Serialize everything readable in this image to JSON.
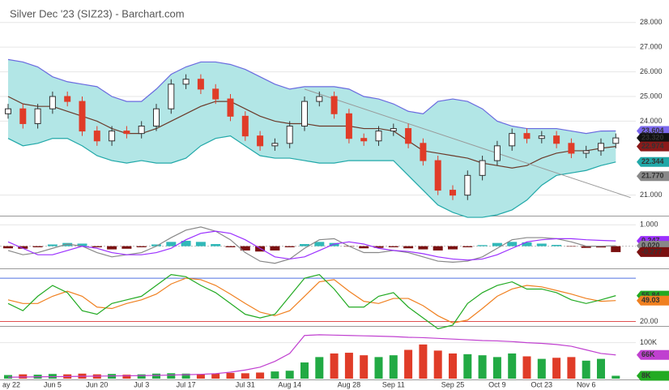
{
  "chart_data": {
    "type": "candlestick",
    "title": "Silver Dec '23 (SIZ23) - Barchart.com",
    "x_labels": [
      "ay 22",
      "Jun 5",
      "Jun 20",
      "Jul 3",
      "Jul 17",
      "Jul 31",
      "Aug 14",
      "Aug 28",
      "Sep 11",
      "Sep 25",
      "Oct 9",
      "Oct 23",
      "Nov 6"
    ],
    "x_label_index": [
      0,
      3,
      6,
      9,
      12,
      16,
      19,
      23,
      26,
      30,
      33,
      36,
      39
    ],
    "price": {
      "ylim": [
        20.2,
        28.65
      ],
      "yticks": [
        {
          "value": 28,
          "label": "28.000"
        },
        {
          "value": 27,
          "label": "27.000"
        },
        {
          "value": 26,
          "label": "26.000"
        },
        {
          "value": 25,
          "label": "25.000"
        },
        {
          "value": 24,
          "label": "24.000"
        },
        {
          "value": 21,
          "label": "21.000"
        }
      ],
      "open": [
        24.3,
        24.5,
        23.9,
        24.5,
        25.0,
        24.8,
        23.6,
        23.2,
        23.6,
        23.5,
        23.8,
        24.5,
        25.5,
        25.7,
        25.3,
        24.9,
        24.2,
        23.4,
        23.0,
        23.1,
        23.8,
        24.8,
        25.0,
        24.3,
        23.3,
        23.2,
        23.6,
        23.7,
        23.1,
        22.4,
        21.2,
        21.0,
        21.8,
        22.4,
        23.0,
        23.5,
        23.3,
        23.4,
        23.1,
        22.7,
        22.8,
        23.1
      ],
      "high": [
        24.7,
        24.7,
        24.7,
        25.2,
        25.2,
        25.0,
        23.8,
        23.8,
        23.8,
        24.0,
        24.7,
        25.7,
        25.9,
        25.9,
        25.5,
        25.1,
        24.4,
        23.6,
        23.3,
        24.0,
        25.0,
        25.2,
        25.2,
        24.5,
        23.5,
        23.8,
        23.9,
        23.9,
        23.3,
        22.6,
        21.4,
        22.0,
        22.6,
        23.2,
        23.7,
        23.7,
        23.6,
        23.6,
        23.3,
        23.0,
        23.3,
        23.5
      ],
      "low": [
        24.1,
        23.7,
        23.7,
        24.3,
        24.6,
        23.4,
        23.0,
        23.0,
        23.3,
        23.3,
        23.6,
        24.3,
        25.3,
        25.1,
        24.7,
        24.0,
        23.2,
        22.8,
        22.8,
        22.9,
        23.6,
        24.6,
        24.1,
        23.1,
        23.0,
        23.0,
        23.4,
        22.9,
        22.2,
        21.0,
        20.8,
        20.8,
        21.6,
        22.2,
        22.8,
        23.1,
        23.1,
        22.9,
        22.5,
        22.5,
        22.6,
        22.9
      ],
      "close": [
        24.5,
        23.9,
        24.5,
        25.0,
        24.8,
        23.6,
        23.2,
        23.6,
        23.5,
        23.8,
        24.5,
        25.5,
        25.7,
        25.3,
        24.9,
        24.2,
        23.4,
        23.0,
        23.1,
        23.8,
        24.8,
        25.0,
        24.3,
        23.3,
        23.2,
        23.6,
        23.7,
        23.1,
        22.4,
        21.2,
        21.0,
        21.8,
        22.4,
        23.0,
        23.5,
        23.3,
        23.4,
        23.1,
        22.7,
        22.8,
        23.1,
        23.32
      ],
      "upper": [
        26.5,
        26.4,
        26.2,
        25.8,
        25.6,
        25.5,
        25.4,
        25.0,
        24.8,
        24.8,
        25.3,
        25.9,
        26.2,
        26.4,
        26.4,
        26.3,
        26.1,
        25.8,
        25.5,
        25.3,
        25.4,
        25.4,
        25.4,
        25.3,
        25.0,
        24.9,
        24.7,
        24.4,
        24.3,
        24.8,
        24.9,
        24.8,
        24.5,
        24.0,
        23.8,
        23.7,
        23.7,
        23.7,
        23.6,
        23.5,
        23.6,
        23.604
      ],
      "lower": [
        23.3,
        23.0,
        23.1,
        23.3,
        23.3,
        23.0,
        22.6,
        22.4,
        22.3,
        22.4,
        22.3,
        22.3,
        22.5,
        23.0,
        23.3,
        23.4,
        23.0,
        22.6,
        22.5,
        22.5,
        22.4,
        22.3,
        22.3,
        22.4,
        22.4,
        22.4,
        22.4,
        21.8,
        21.2,
        20.6,
        20.3,
        20.1,
        20.1,
        20.2,
        20.4,
        20.8,
        21.4,
        21.8,
        21.9,
        22.0,
        22.2,
        22.344
      ],
      "sma": [
        25.0,
        24.7,
        24.6,
        24.6,
        24.4,
        24.2,
        24.0,
        23.7,
        23.5,
        23.5,
        23.7,
        24.0,
        24.3,
        24.6,
        24.8,
        24.8,
        24.5,
        24.2,
        24.0,
        23.9,
        23.9,
        23.8,
        23.8,
        23.8,
        23.7,
        23.7,
        23.6,
        23.2,
        22.8,
        22.7,
        22.6,
        22.5,
        22.3,
        22.2,
        22.1,
        22.2,
        22.5,
        22.7,
        22.8,
        22.8,
        22.9,
        22.974
      ],
      "trendline": [
        [
          20,
          25.3
        ],
        [
          42,
          20.9
        ]
      ],
      "last_labels": [
        {
          "value": 23.604,
          "label": "23.604",
          "color": "#7b68ee"
        },
        {
          "value": 23.32,
          "label": "23.320",
          "color": "#111"
        },
        {
          "value": 22.974,
          "label": "22.974",
          "color": "#8b1a1a"
        },
        {
          "value": 22.344,
          "label": "22.344",
          "color": "#20a8a8"
        },
        {
          "value": 21.77,
          "label": "21.770",
          "color": "#888"
        }
      ]
    },
    "macd": {
      "ylim": [
        -1.0,
        1.35
      ],
      "yticks": [
        {
          "value": 1,
          "label": "1.000"
        }
      ],
      "histogram": [
        -0.1,
        -0.12,
        -0.05,
        0.08,
        0.15,
        0.12,
        -0.05,
        -0.15,
        -0.12,
        -0.05,
        0.08,
        0.2,
        0.25,
        0.2,
        0.1,
        -0.05,
        -0.2,
        -0.25,
        -0.2,
        -0.05,
        0.1,
        0.2,
        0.15,
        -0.02,
        -0.1,
        -0.08,
        -0.05,
        -0.1,
        -0.15,
        -0.2,
        -0.15,
        -0.05,
        0.05,
        0.15,
        0.2,
        0.18,
        0.12,
        0.06,
        -0.02,
        -0.08,
        -0.06,
        -0.277
      ],
      "macd": [
        -0.2,
        -0.4,
        -0.3,
        -0.1,
        0.1,
        0.0,
        -0.3,
        -0.5,
        -0.4,
        -0.3,
        0.0,
        0.4,
        0.75,
        0.9,
        0.7,
        0.3,
        -0.3,
        -0.7,
        -0.8,
        -0.6,
        -0.1,
        0.3,
        0.35,
        0.0,
        -0.3,
        -0.3,
        -0.2,
        -0.3,
        -0.5,
        -0.7,
        -0.75,
        -0.7,
        -0.5,
        -0.1,
        0.3,
        0.4,
        0.4,
        0.35,
        0.2,
        0.0,
        0.0,
        0.02
      ],
      "signal": [
        0.2,
        -0.1,
        -0.4,
        -0.4,
        -0.2,
        0.0,
        -0.1,
        -0.3,
        -0.4,
        -0.4,
        -0.3,
        -0.1,
        0.3,
        0.6,
        0.7,
        0.6,
        0.3,
        -0.1,
        -0.5,
        -0.6,
        -0.5,
        -0.2,
        0.1,
        0.2,
        0.1,
        -0.1,
        -0.2,
        -0.25,
        -0.35,
        -0.5,
        -0.6,
        -0.65,
        -0.6,
        -0.4,
        -0.1,
        0.2,
        0.3,
        0.35,
        0.35,
        0.3,
        0.27,
        0.247
      ],
      "last_labels": [
        {
          "value": 0.247,
          "label": "0.247",
          "color": "#9b30ff"
        },
        {
          "value": 0.02,
          "label": "0.020",
          "color": "#888"
        },
        {
          "value": -0.277,
          "label": "-0.277",
          "color": "#7a1010"
        }
      ]
    },
    "stoch": {
      "ylim": [
        15,
        88
      ],
      "yticks": [
        {
          "value": 20,
          "label": "20.00"
        }
      ],
      "bands": [
        80,
        20
      ],
      "k": [
        45,
        35,
        55,
        70,
        60,
        35,
        30,
        45,
        50,
        55,
        70,
        85,
        82,
        70,
        60,
        45,
        30,
        25,
        30,
        55,
        80,
        85,
        65,
        40,
        40,
        55,
        60,
        40,
        25,
        10,
        15,
        45,
        60,
        70,
        75,
        65,
        65,
        60,
        50,
        45,
        50,
        55.84
      ],
      "d": [
        50,
        45,
        45,
        55,
        62,
        55,
        40,
        38,
        45,
        50,
        58,
        72,
        80,
        78,
        70,
        58,
        45,
        33,
        28,
        35,
        55,
        75,
        78,
        62,
        48,
        45,
        52,
        52,
        42,
        28,
        18,
        22,
        38,
        55,
        65,
        70,
        68,
        63,
        58,
        52,
        48,
        49.03
      ],
      "last_labels": [
        {
          "value": 55.84,
          "label": "55.84",
          "color": "#22aa22"
        },
        {
          "value": 49.03,
          "label": "49.03",
          "color": "#f08020"
        }
      ]
    },
    "volume": {
      "ylim": [
        0,
        142000
      ],
      "yticks": [
        {
          "value": 100000,
          "label": "100K"
        }
      ],
      "values": [
        10000,
        12000,
        11000,
        13000,
        12000,
        14000,
        12000,
        13000,
        11000,
        12000,
        14000,
        15000,
        14000,
        13000,
        14000,
        16000,
        15000,
        17000,
        20000,
        22000,
        45000,
        60000,
        70000,
        72000,
        65000,
        60000,
        65000,
        80000,
        95000,
        78000,
        70000,
        68000,
        65000,
        60000,
        70000,
        62000,
        55000,
        58000,
        60000,
        50000,
        55000,
        8000
      ],
      "open_interest": [
        4000,
        4500,
        5000,
        5500,
        6000,
        6500,
        7000,
        7500,
        8000,
        8500,
        9000,
        10000,
        11000,
        12000,
        14000,
        18000,
        24000,
        32000,
        48000,
        70000,
        120000,
        122000,
        121000,
        120000,
        119000,
        118000,
        117000,
        115000,
        114000,
        112000,
        110000,
        108000,
        106000,
        105000,
        103000,
        100000,
        98000,
        95000,
        90000,
        80000,
        70000,
        66000
      ],
      "last_labels": [
        {
          "value": 66000,
          "label": "66K",
          "color": "#c040d0"
        },
        {
          "value": 8000,
          "label": "8K",
          "color": "#22aa22"
        }
      ]
    }
  }
}
